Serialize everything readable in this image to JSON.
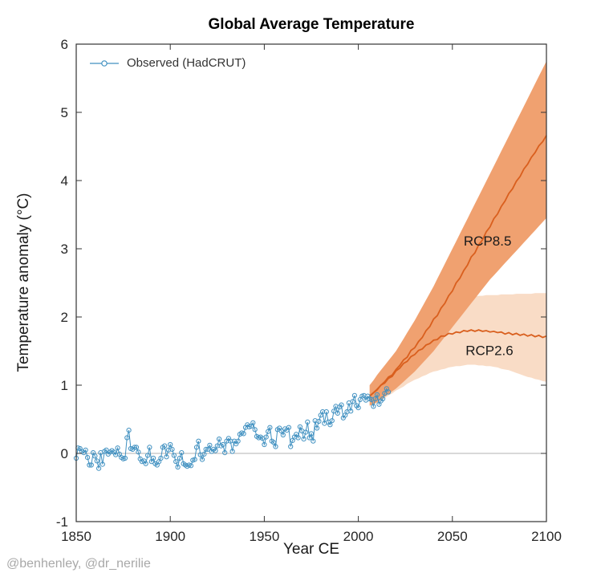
{
  "watermark": "@benhenley, @dr_nerilie",
  "chart_data": {
    "type": "line",
    "title": "Global Average Temperature",
    "xlabel": "Year CE",
    "ylabel": "Temperature anomaly (°C)",
    "xlim": [
      1850,
      2100
    ],
    "ylim": [
      -1,
      6
    ],
    "xticks": [
      1850,
      1900,
      1950,
      2000,
      2050,
      2100
    ],
    "yticks": [
      -1,
      0,
      1,
      2,
      3,
      4,
      5,
      6
    ],
    "grid": false,
    "zero_line": 0,
    "frame_color": "#333333",
    "zero_line_color": "#b3b3b3",
    "legend": {
      "position": "top-left",
      "entries": [
        {
          "label": "Observed (HadCRUT)",
          "color": "#4191c1",
          "marker": "circle-line"
        }
      ]
    },
    "annotations": [
      {
        "label": "RCP8.5",
        "x": 2056,
        "y": 3.05,
        "color": "#1a1a1a"
      },
      {
        "label": "RCP2.6",
        "x": 2057,
        "y": 1.44,
        "color": "#1a1a1a"
      }
    ],
    "series": [
      {
        "name": "Observed (HadCRUT)",
        "type": "line-markers",
        "color": "#4191c1",
        "x_start": 1850,
        "x_step": 1,
        "values": [
          -0.07,
          0.08,
          0.07,
          0.03,
          0.01,
          0.05,
          -0.06,
          -0.17,
          -0.17,
          0.01,
          -0.04,
          -0.11,
          -0.22,
          0.01,
          -0.16,
          0.03,
          0.05,
          -0.01,
          0.02,
          0.04,
          0.02,
          -0.02,
          0.08,
          -0.01,
          -0.06,
          -0.08,
          -0.07,
          0.23,
          0.34,
          0.07,
          0.06,
          0.09,
          0.09,
          0.02,
          -0.08,
          -0.12,
          -0.11,
          -0.15,
          -0.03,
          0.09,
          -0.12,
          -0.07,
          -0.15,
          -0.17,
          -0.12,
          -0.07,
          0.09,
          0.11,
          -0.05,
          0.05,
          0.13,
          0.06,
          -0.03,
          -0.12,
          -0.2,
          -0.07,
          0.01,
          -0.15,
          -0.17,
          -0.19,
          -0.17,
          -0.18,
          -0.1,
          -0.09,
          0.09,
          0.18,
          -0.02,
          -0.09,
          -0.01,
          0.06,
          0.06,
          0.12,
          0.03,
          0.06,
          0.04,
          0.11,
          0.21,
          0.11,
          0.13,
          0.01,
          0.18,
          0.22,
          0.18,
          0.03,
          0.18,
          0.14,
          0.18,
          0.28,
          0.3,
          0.29,
          0.38,
          0.42,
          0.39,
          0.4,
          0.45,
          0.35,
          0.25,
          0.23,
          0.24,
          0.22,
          0.13,
          0.24,
          0.32,
          0.38,
          0.18,
          0.16,
          0.1,
          0.35,
          0.37,
          0.33,
          0.27,
          0.36,
          0.34,
          0.38,
          0.1,
          0.19,
          0.24,
          0.28,
          0.23,
          0.39,
          0.33,
          0.21,
          0.31,
          0.46,
          0.23,
          0.29,
          0.18,
          0.48,
          0.37,
          0.47,
          0.56,
          0.61,
          0.44,
          0.61,
          0.46,
          0.42,
          0.48,
          0.62,
          0.69,
          0.59,
          0.68,
          0.71,
          0.52,
          0.56,
          0.61,
          0.74,
          0.62,
          0.76,
          0.85,
          0.7,
          0.67,
          0.79,
          0.84,
          0.85,
          0.78,
          0.84,
          0.8,
          0.79,
          0.69,
          0.8,
          0.86,
          0.72,
          0.77,
          0.8,
          0.88,
          0.95,
          0.9
        ]
      },
      {
        "name": "RCP8.5",
        "type": "line",
        "color": "#d95f1e",
        "x_start": 2006,
        "x_step": 2,
        "values": [
          0.84,
          0.89,
          0.94,
          1.0,
          1.05,
          1.12,
          1.15,
          1.23,
          1.29,
          1.37,
          1.41,
          1.51,
          1.55,
          1.64,
          1.7,
          1.8,
          1.86,
          1.97,
          2.02,
          2.13,
          2.2,
          2.31,
          2.38,
          2.5,
          2.57,
          2.68,
          2.76,
          2.88,
          2.94,
          3.06,
          3.13,
          3.25,
          3.32,
          3.44,
          3.51,
          3.62,
          3.7,
          3.81,
          3.88,
          3.99,
          4.06,
          4.17,
          4.24,
          4.34,
          4.41,
          4.51,
          4.57,
          4.66
        ],
        "band": {
          "fill": "#f0a170",
          "lower": [
            0.7,
            0.72,
            0.75,
            0.79,
            0.83,
            0.87,
            0.91,
            0.95,
            1.0,
            1.05,
            1.1,
            1.15,
            1.2,
            1.26,
            1.32,
            1.38,
            1.44,
            1.5,
            1.57,
            1.64,
            1.71,
            1.78,
            1.85,
            1.92,
            1.99,
            2.06,
            2.13,
            2.2,
            2.27,
            2.34,
            2.41,
            2.48,
            2.55,
            2.61,
            2.67,
            2.73,
            2.79,
            2.85,
            2.91,
            2.97,
            3.03,
            3.09,
            3.15,
            3.21,
            3.27,
            3.33,
            3.39,
            3.45
          ],
          "upper": [
            1.0,
            1.07,
            1.15,
            1.22,
            1.29,
            1.36,
            1.43,
            1.5,
            1.59,
            1.68,
            1.77,
            1.86,
            1.95,
            2.05,
            2.15,
            2.25,
            2.35,
            2.45,
            2.56,
            2.67,
            2.78,
            2.89,
            3.0,
            3.11,
            3.22,
            3.33,
            3.44,
            3.55,
            3.66,
            3.77,
            3.88,
            3.99,
            4.1,
            4.21,
            4.32,
            4.43,
            4.54,
            4.65,
            4.76,
            4.87,
            4.98,
            5.09,
            5.2,
            5.31,
            5.42,
            5.53,
            5.64,
            5.75
          ]
        }
      },
      {
        "name": "RCP2.6",
        "type": "line",
        "color": "#d95f1e",
        "x_start": 2006,
        "x_step": 2,
        "values": [
          0.84,
          0.89,
          0.93,
          1.0,
          1.03,
          1.1,
          1.13,
          1.21,
          1.25,
          1.32,
          1.35,
          1.42,
          1.45,
          1.51,
          1.53,
          1.59,
          1.61,
          1.66,
          1.67,
          1.72,
          1.72,
          1.76,
          1.75,
          1.78,
          1.77,
          1.8,
          1.79,
          1.81,
          1.79,
          1.81,
          1.79,
          1.8,
          1.78,
          1.79,
          1.77,
          1.78,
          1.75,
          1.77,
          1.74,
          1.76,
          1.73,
          1.75,
          1.72,
          1.74,
          1.71,
          1.73,
          1.7,
          1.72
        ],
        "band": {
          "fill": "#f9dcc6",
          "lower": [
            0.7,
            0.72,
            0.74,
            0.78,
            0.81,
            0.85,
            0.88,
            0.92,
            0.95,
            0.98,
            1.02,
            1.05,
            1.08,
            1.1,
            1.13,
            1.15,
            1.18,
            1.2,
            1.21,
            1.23,
            1.24,
            1.26,
            1.27,
            1.28,
            1.28,
            1.29,
            1.3,
            1.3,
            1.3,
            1.29,
            1.29,
            1.28,
            1.28,
            1.27,
            1.26,
            1.24,
            1.23,
            1.22,
            1.2,
            1.18,
            1.16,
            1.14,
            1.12,
            1.11,
            1.09,
            1.08,
            1.06,
            1.05
          ],
          "upper": [
            1.0,
            1.07,
            1.14,
            1.21,
            1.28,
            1.35,
            1.41,
            1.48,
            1.55,
            1.62,
            1.68,
            1.75,
            1.82,
            1.88,
            1.93,
            1.99,
            2.04,
            2.1,
            2.13,
            2.15,
            2.18,
            2.2,
            2.23,
            2.24,
            2.26,
            2.27,
            2.29,
            2.3,
            2.3,
            2.31,
            2.31,
            2.32,
            2.32,
            2.32,
            2.32,
            2.33,
            2.33,
            2.33,
            2.33,
            2.34,
            2.34,
            2.34,
            2.34,
            2.34,
            2.35,
            2.35,
            2.35,
            2.35
          ]
        }
      }
    ]
  }
}
